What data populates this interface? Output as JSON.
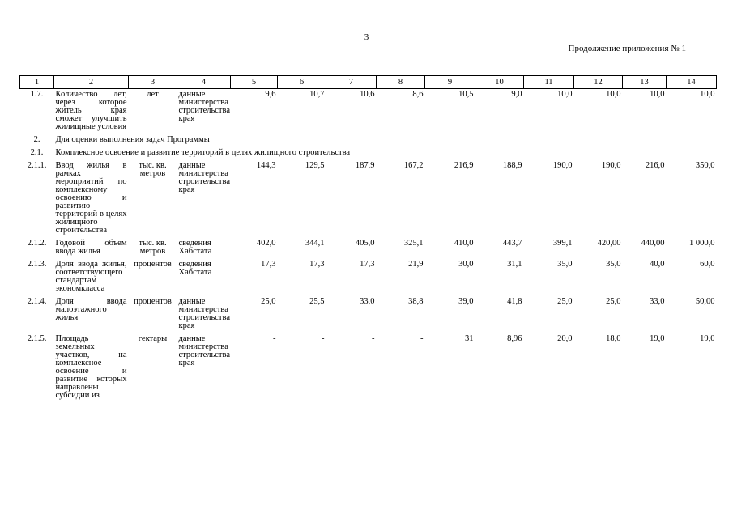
{
  "page_number": "3",
  "continuation": "Продолжение  приложения № 1",
  "headers": [
    "1",
    "2",
    "3",
    "4",
    "5",
    "6",
    "7",
    "8",
    "9",
    "10",
    "11",
    "12",
    "13",
    "14"
  ],
  "rows": [
    {
      "num": "1.7.",
      "name": "Количество лет, через которое житель края сможет улучшить жилищные условия",
      "unit": "лет",
      "source": "данные министерства строительства края",
      "values": [
        "9,6",
        "10,7",
        "10,6",
        "8,6",
        "10,5",
        "9,0",
        "10,0",
        "10,0",
        "10,0",
        "10,0"
      ]
    }
  ],
  "section2": {
    "num": "2.",
    "text": "Для оценки выполнения задач Программы"
  },
  "section21": {
    "num": "2.1.",
    "text": "Комплексное освоение и развитие территорий в целях жилищного строительства"
  },
  "rows2": [
    {
      "num": "2.1.1.",
      "name": "Ввод жилья в рамках мероприятий по комплексному освоению и развитию территорий в целях жилищного строительства",
      "unit": "тыс. кв. метров",
      "source": "данные министерства строительства края",
      "values": [
        "144,3",
        "129,5",
        "187,9",
        "167,2",
        "216,9",
        "188,9",
        "190,0",
        "190,0",
        "216,0",
        "350,0"
      ]
    },
    {
      "num": "2.1.2.",
      "name": "Годовой объем ввода жилья",
      "unit": "тыс. кв. метров",
      "source": "сведения Хабстата",
      "values": [
        "402,0",
        "344,1",
        "405,0",
        "325,1",
        "410,0",
        "443,7",
        "399,1",
        "420,00",
        "440,00",
        "1 000,0"
      ]
    },
    {
      "num": "2.1.3.",
      "name": "Доля ввода жилья, соответствующего стандартам экономкласса",
      "unit": "процентов",
      "source": "сведения Хабстата",
      "values": [
        "17,3",
        "17,3",
        "17,3",
        "21,9",
        "30,0",
        "31,1",
        "35,0",
        "35,0",
        "40,0",
        "60,0"
      ]
    },
    {
      "num": "2.1.4.",
      "name": "Доля ввода малоэтажного жилья",
      "unit": "процентов",
      "source": "данные министерства строительства края",
      "values": [
        "25,0",
        "25,5",
        "33,0",
        "38,8",
        "39,0",
        "41,8",
        "25,0",
        "25,0",
        "33,0",
        "50,00"
      ]
    },
    {
      "num": "2.1.5.",
      "name": "Площадь земельных участков, на комплексное освоение и развитие которых направлены субсидии из",
      "unit": "гектары",
      "source": "данные министерства строительства края",
      "values": [
        "-",
        "-",
        "-",
        "-",
        "31",
        "8,96",
        "20,0",
        "18,0",
        "19,0",
        "19,0"
      ]
    }
  ]
}
